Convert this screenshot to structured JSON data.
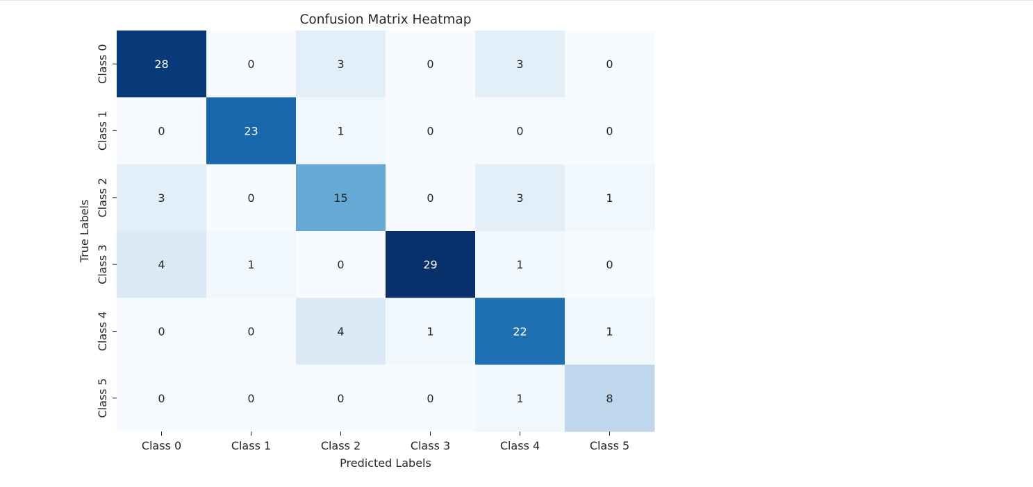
{
  "chart_data": {
    "type": "heatmap",
    "title": "Confusion Matrix Heatmap",
    "xlabel": "Predicted Labels",
    "ylabel": "True Labels",
    "x_categories": [
      "Class 0",
      "Class 1",
      "Class 2",
      "Class 3",
      "Class 4",
      "Class 5"
    ],
    "y_categories": [
      "Class 0",
      "Class 1",
      "Class 2",
      "Class 3",
      "Class 4",
      "Class 5"
    ],
    "values": [
      [
        28,
        0,
        3,
        0,
        3,
        0
      ],
      [
        0,
        23,
        1,
        0,
        0,
        0
      ],
      [
        3,
        0,
        15,
        0,
        3,
        1
      ],
      [
        4,
        1,
        0,
        29,
        1,
        0
      ],
      [
        0,
        0,
        4,
        1,
        22,
        1
      ],
      [
        0,
        0,
        0,
        0,
        1,
        8
      ]
    ],
    "colormap": "Blues",
    "annotated": true,
    "colorbar": false,
    "grid": false
  }
}
